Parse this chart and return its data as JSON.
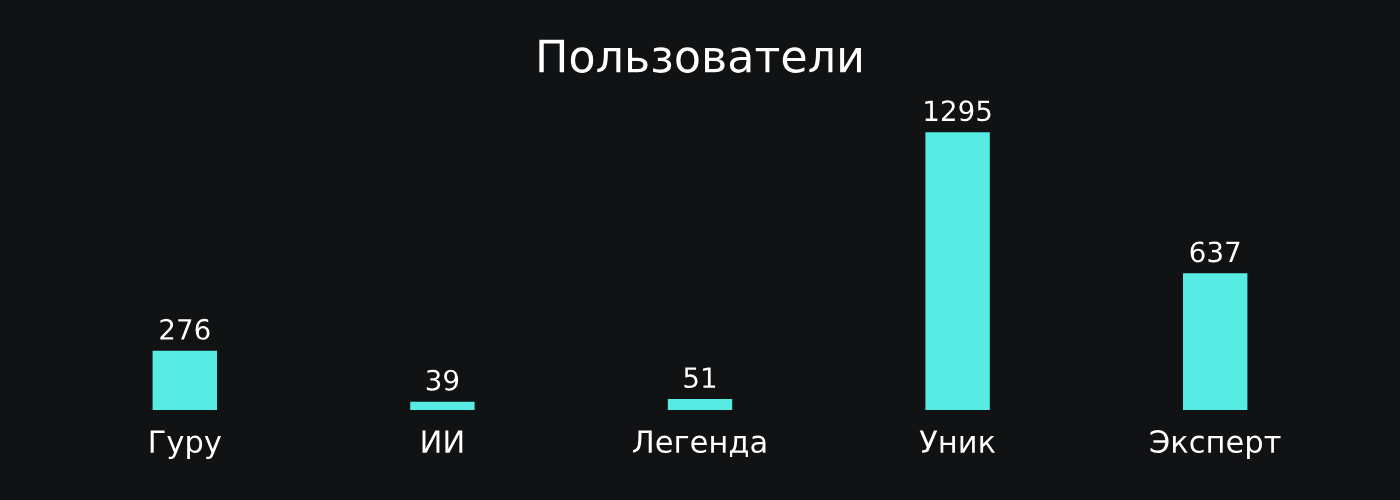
{
  "chart_data": {
    "type": "bar",
    "title": "Пользователи",
    "categories": [
      "Гуру",
      "ИИ",
      "Легенда",
      "Уник",
      "Эксперт"
    ],
    "values": [
      276,
      39,
      51,
      1295,
      637
    ],
    "color": "#56ebe3",
    "data_labels": true
  }
}
